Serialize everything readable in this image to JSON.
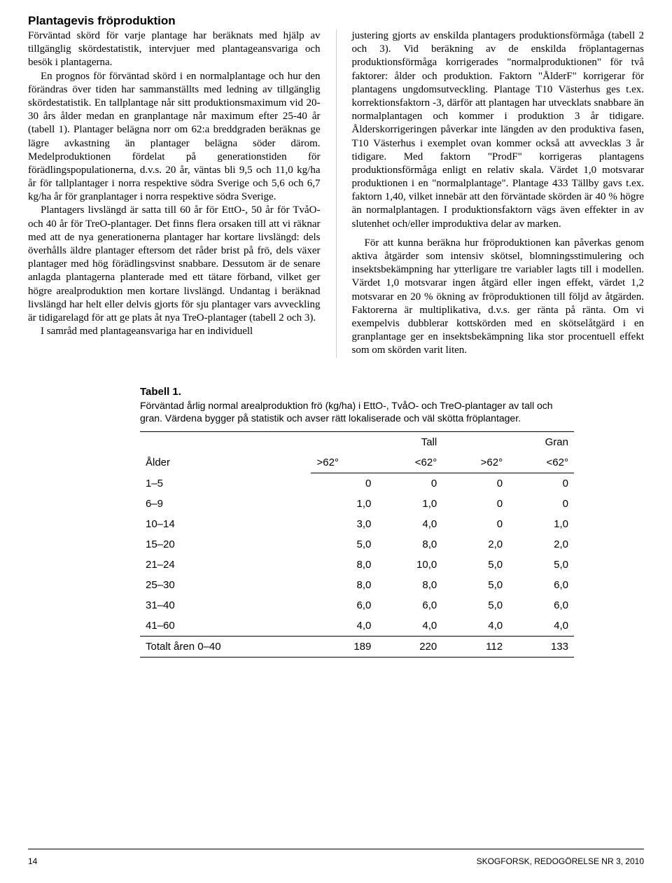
{
  "heading": "Plantagevis fröproduktion",
  "leftCol": {
    "p1": "Förväntad skörd för varje plantage har beräknats med hjälp av tillgänglig skördestatistik, intervjuer med plantageansvariga och besök i plantagerna.",
    "p2": "En prognos för förväntad skörd i en normalplantage och hur den förändras över tiden har sammanställts med ledning av tillgänglig skördestatistik. En tallplantage når sitt produktionsmaximum vid 20-30 års ålder medan en granplantage når maximum efter 25-40 år (tabell 1). Plantager belägna norr om 62:a breddgraden beräknas ge lägre avkastning än plantager belägna söder därom. Medelproduktionen fördelat på generationstiden för förädlingspopulationerna, d.v.s. 20 år, väntas bli 9,5 och 11,0 kg/ha år för tallplantager i norra respektive södra Sverige och 5,6 och 6,7 kg/ha år för granplantager i norra respektive södra Sverige.",
    "p3": "Plantagers livslängd är satta till 60 år för EttO-, 50 år för TvåO- och 40 år för TreO-plantager. Det finns flera orsaken till att vi räknar med att de nya generationerna plantager har kortare livslängd: dels överhålls äldre plantager eftersom det råder brist på frö, dels växer plantager med hög förädlingsvinst snabbare. Dessutom är de senare anlagda plantagerna planterade med ett tätare förband, vilket ger högre arealproduktion men kortare livslängd. Undantag i beräknad livslängd har helt eller delvis gjorts för sju plantager vars avveckling är tidigarelagd för att ge plats åt nya TreO-plantager (tabell 2 och 3).",
    "p4": "I samråd med plantageansvariga har en individuell"
  },
  "rightCol": {
    "p1": "justering gjorts av enskilda plantagers produktionsförmåga (tabell 2 och 3). Vid beräkning av de enskilda fröplantagernas produktionsförmåga korrigerades \"normalproduktionen\" för två faktorer: ålder och produktion. Faktorn \"ÅlderF\" korrigerar för plantagens ungdomsutveckling. Plantage T10 Västerhus ges t.ex. korrektionsfaktorn -3, därför att plantagen har utvecklats snabbare än normalplantagen och kommer i produktion 3 år tidigare. Ålderskorrigeringen påverkar inte längden av den produktiva fasen, T10 Västerhus i exemplet ovan kommer också att avvecklas 3 år tidigare. Med faktorn \"ProdF\" korrigeras plantagens produktionsförmåga enligt en relativ skala. Värdet 1,0 motsvarar produktionen i en \"normalplantage\". Plantage 433 Tällby gavs t.ex. faktorn 1,40, vilket innebär att den förväntade skörden är 40 % högre än normalplantagen. I produktionsfaktorn vägs även effekter in av slutenhet och/eller improduktiva delar av marken.",
    "p2": "För att kunna beräkna hur fröproduktionen kan påverkas genom aktiva åtgärder som intensiv skötsel, blomningsstimulering och insektsbekämpning har ytterligare tre variabler lagts till i modellen. Värdet 1,0 motsvarar ingen åtgärd eller ingen effekt, värdet 1,2 motsvarar en 20 % ökning av fröproduktionen till följd av åtgärden. Faktorerna är multiplikativa, d.v.s. ger ränta på ränta. Om vi exempelvis dubblerar kottskörden med en skötselåtgärd i en granplantage ger en insektsbekämpning lika stor procentuell effekt som om skörden varit liten."
  },
  "table": {
    "title": "Tabell 1.",
    "caption": "Förväntad årlig normal arealproduktion frö (kg/ha) i EttO-, TvåO- och TreO-plantager av tall och gran. Värdena bygger på statistik och avser rätt lokaliserade och väl skötta fröplantager.",
    "ageHeader": "Ålder",
    "group1": "Tall",
    "group2": "Gran",
    "sub": [
      ">62°",
      "<62°",
      ">62°",
      "<62°"
    ],
    "rows": [
      {
        "age": "1–5",
        "c1": "0",
        "c2": "0",
        "c3": "0",
        "c4": "0"
      },
      {
        "age": "6–9",
        "c1": "1,0",
        "c2": "1,0",
        "c3": "0",
        "c4": "0"
      },
      {
        "age": "10–14",
        "c1": "3,0",
        "c2": "4,0",
        "c3": "0",
        "c4": "1,0"
      },
      {
        "age": "15–20",
        "c1": "5,0",
        "c2": "8,0",
        "c3": "2,0",
        "c4": "2,0"
      },
      {
        "age": "21–24",
        "c1": "8,0",
        "c2": "10,0",
        "c3": "5,0",
        "c4": "5,0"
      },
      {
        "age": "25–30",
        "c1": "8,0",
        "c2": "8,0",
        "c3": "5,0",
        "c4": "6,0"
      },
      {
        "age": "31–40",
        "c1": "6,0",
        "c2": "6,0",
        "c3": "5,0",
        "c4": "6,0"
      },
      {
        "age": "41–60",
        "c1": "4,0",
        "c2": "4,0",
        "c3": "4,0",
        "c4": "4,0"
      }
    ],
    "totalLabel": "Totalt åren 0–40",
    "totals": [
      "189",
      "220",
      "112",
      "133"
    ]
  },
  "footer": {
    "pageNum": "14",
    "pub": "SKOGFORSK, REDOGÖRELSE NR 3, 2010"
  }
}
